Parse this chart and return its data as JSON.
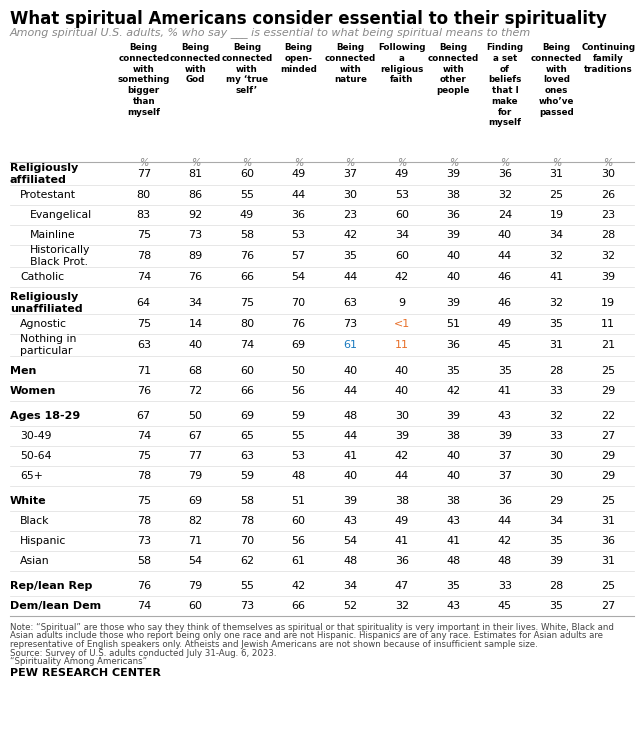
{
  "title": "What spiritual Americans consider essential to their spirituality",
  "subtitle": "Among spiritual U.S. adults, % who say ___ is essential to what being spiritual means to them",
  "col_headers": [
    "Being\nconnected\nwith\nsomething\nbigger\nthan\nmyself",
    "Being\nconnected\nwith\nGod",
    "Being\nconnected\nwith\nmy ‘true\nself’",
    "Being\nopen-\nminded",
    "Being\nconnected\nwith\nnature",
    "Following\na\nreligious\nfaith",
    "Being\nconnected\nwith\nother\npeople",
    "Finding\na set\nof\nbeliefs\nthat I\nmake\nfor\nmyself",
    "Being\nconnected\nwith\nloved\nones\nwho’ve\npassed",
    "Continuing\nfamily\ntraditions"
  ],
  "row_labels": [
    "Religiously\naffiliated",
    "Protestant",
    "Evangelical",
    "Mainline",
    "Historically\nBlack Prot.",
    "Catholic",
    "Religiously\nunaffiliated",
    "Agnostic",
    "Nothing in\nparticular",
    "Men",
    "Women",
    "Ages 18-29",
    "30-49",
    "50-64",
    "65+",
    "White",
    "Black",
    "Hispanic",
    "Asian",
    "Rep/lean Rep",
    "Dem/lean Dem"
  ],
  "row_indents": [
    0,
    1,
    2,
    2,
    2,
    1,
    0,
    1,
    1,
    0,
    0,
    0,
    1,
    1,
    1,
    0,
    1,
    1,
    1,
    0,
    0
  ],
  "data": [
    [
      77,
      81,
      60,
      49,
      37,
      49,
      39,
      36,
      31,
      30
    ],
    [
      80,
      86,
      55,
      44,
      30,
      53,
      38,
      32,
      25,
      26
    ],
    [
      83,
      92,
      49,
      36,
      23,
      60,
      36,
      24,
      19,
      23
    ],
    [
      75,
      73,
      58,
      53,
      42,
      34,
      39,
      40,
      34,
      28
    ],
    [
      78,
      89,
      76,
      57,
      35,
      60,
      40,
      44,
      32,
      32
    ],
    [
      74,
      76,
      66,
      54,
      44,
      42,
      40,
      46,
      41,
      39
    ],
    [
      64,
      34,
      75,
      70,
      63,
      9,
      39,
      46,
      32,
      19
    ],
    [
      75,
      14,
      80,
      76,
      73,
      "<1",
      51,
      49,
      35,
      11
    ],
    [
      63,
      40,
      74,
      69,
      61,
      11,
      36,
      45,
      31,
      21
    ],
    [
      71,
      68,
      60,
      50,
      40,
      40,
      35,
      35,
      28,
      25
    ],
    [
      76,
      72,
      66,
      56,
      44,
      40,
      42,
      41,
      33,
      29
    ],
    [
      67,
      50,
      69,
      59,
      48,
      30,
      39,
      43,
      32,
      22
    ],
    [
      74,
      67,
      65,
      55,
      44,
      39,
      38,
      39,
      33,
      27
    ],
    [
      75,
      77,
      63,
      53,
      41,
      42,
      40,
      37,
      30,
      29
    ],
    [
      78,
      79,
      59,
      48,
      40,
      44,
      40,
      37,
      30,
      29
    ],
    [
      75,
      69,
      58,
      51,
      39,
      38,
      38,
      36,
      29,
      25
    ],
    [
      78,
      82,
      78,
      60,
      43,
      49,
      43,
      44,
      34,
      31
    ],
    [
      73,
      71,
      70,
      56,
      54,
      41,
      41,
      42,
      35,
      36
    ],
    [
      58,
      54,
      62,
      61,
      48,
      36,
      48,
      48,
      39,
      31
    ],
    [
      76,
      79,
      55,
      42,
      34,
      47,
      35,
      33,
      28,
      25
    ],
    [
      74,
      60,
      73,
      66,
      52,
      32,
      43,
      45,
      35,
      27
    ]
  ],
  "special_color_cells": {
    "7_5": "#e8702a",
    "8_4": "#1a7abf",
    "8_5": "#e8702a"
  },
  "note1": "Note: “Spiritual” are those who say they think of themselves as spiritual or that spirituality is very important in their lives. White, Black and",
  "note2": "Asian adults include those who report being only one race and are not Hispanic. Hispanics are of any race. Estimates for Asian adults are",
  "note3": "representative of English speakers only. Atheists and Jewish Americans are not shown because of insufficient sample size.",
  "note4": "Source: Survey of U.S. adults conducted July 31-Aug. 6, 2023.",
  "note5": "“Spirituality Among Americans”",
  "source_label": "PEW RESEARCH CENTER",
  "bg_color": "#ffffff",
  "bold_rows": [
    0,
    6,
    9,
    10,
    11,
    15,
    19,
    20
  ],
  "section_gap_before": [
    6,
    9,
    11,
    15,
    19
  ]
}
